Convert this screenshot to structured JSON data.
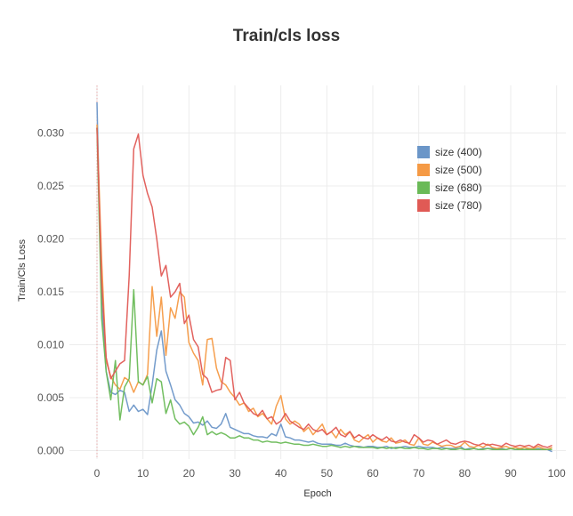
{
  "chart_data": {
    "type": "line",
    "title": "Train/cls loss",
    "xlabel": "Epoch",
    "ylabel": "Train/Cls Loss",
    "xlim": [
      -6,
      102
    ],
    "ylim": [
      -0.0008,
      0.0345
    ],
    "xticks": [
      "0",
      "10",
      "20",
      "30",
      "40",
      "50",
      "60",
      "70",
      "80",
      "90",
      "100"
    ],
    "yticks": [
      "0.000",
      "0.005",
      "0.010",
      "0.015",
      "0.020",
      "0.025",
      "0.030"
    ],
    "grid": true,
    "legend_position": "top-right",
    "x": [
      0,
      1,
      2,
      3,
      4,
      5,
      6,
      7,
      8,
      9,
      10,
      11,
      12,
      13,
      14,
      15,
      16,
      17,
      18,
      19,
      20,
      21,
      22,
      23,
      24,
      25,
      26,
      27,
      28,
      29,
      30,
      31,
      32,
      33,
      34,
      35,
      36,
      37,
      38,
      39,
      40,
      41,
      42,
      43,
      44,
      45,
      46,
      47,
      48,
      49,
      50,
      51,
      52,
      53,
      54,
      55,
      56,
      57,
      58,
      59,
      60,
      61,
      62,
      63,
      64,
      65,
      66,
      67,
      68,
      69,
      70,
      71,
      72,
      73,
      74,
      75,
      76,
      77,
      78,
      79,
      80,
      81,
      82,
      83,
      84,
      85,
      86,
      87,
      88,
      89,
      90,
      91,
      92,
      93,
      94,
      95,
      96,
      97,
      98,
      99
    ],
    "series": [
      {
        "name": "size (400)",
        "color": "#6b96c8",
        "values": [
          0.0329,
          0.014,
          0.0075,
          0.0055,
          0.0053,
          0.0057,
          0.0055,
          0.0037,
          0.0043,
          0.0037,
          0.0039,
          0.0034,
          0.0062,
          0.0095,
          0.0113,
          0.0075,
          0.0062,
          0.0048,
          0.0043,
          0.0035,
          0.0032,
          0.0026,
          0.0027,
          0.0024,
          0.0028,
          0.0022,
          0.0021,
          0.0025,
          0.0035,
          0.0022,
          0.002,
          0.0018,
          0.0016,
          0.0016,
          0.0014,
          0.0013,
          0.0013,
          0.0012,
          0.0016,
          0.0014,
          0.0025,
          0.0013,
          0.0012,
          0.001,
          0.001,
          0.0009,
          0.0008,
          0.0009,
          0.0007,
          0.0006,
          0.0006,
          0.0006,
          0.0005,
          0.0005,
          0.0007,
          0.0005,
          0.0004,
          0.0004,
          0.0003,
          0.0004,
          0.0004,
          0.0003,
          0.0003,
          0.0004,
          0.0002,
          0.0003,
          0.0003,
          0.0004,
          0.0003,
          0.0003,
          0.0004,
          0.0003,
          0.0003,
          0.0003,
          0.0002,
          0.0003,
          0.0002,
          0.0002,
          0.0002,
          0.0004,
          0.0001,
          0.0002,
          0.0002,
          0.0001,
          0.0002,
          0.0002,
          0.0002,
          0.0001,
          0.0002,
          0.0001,
          0.0002,
          0.0001,
          0.0002,
          0.0001,
          0.0002,
          0.0001,
          0.0002,
          0.0001,
          0.0001,
          -0.0001
        ]
      },
      {
        "name": "size (500)",
        "color": "#f59a45",
        "values": [
          0.0308,
          0.018,
          0.0085,
          0.007,
          0.0062,
          0.0058,
          0.0069,
          0.0066,
          0.0055,
          0.0065,
          0.0062,
          0.0072,
          0.0155,
          0.0108,
          0.0145,
          0.009,
          0.0135,
          0.0125,
          0.015,
          0.0145,
          0.0102,
          0.0092,
          0.0085,
          0.0062,
          0.0105,
          0.0106,
          0.0078,
          0.0065,
          0.0062,
          0.0055,
          0.005,
          0.0043,
          0.0045,
          0.0037,
          0.004,
          0.0032,
          0.0035,
          0.003,
          0.0025,
          0.0042,
          0.0052,
          0.003,
          0.0025,
          0.0028,
          0.0025,
          0.0018,
          0.0022,
          0.0015,
          0.002,
          0.0025,
          0.0015,
          0.0018,
          0.0012,
          0.002,
          0.0015,
          0.0018,
          0.001,
          0.0008,
          0.0012,
          0.0015,
          0.0008,
          0.0012,
          0.0009,
          0.0008,
          0.0012,
          0.0007,
          0.0008,
          0.001,
          0.0006,
          0.0005,
          0.0012,
          0.0006,
          0.0005,
          0.0008,
          0.0006,
          0.0004,
          0.0005,
          0.0005,
          0.0003,
          0.0004,
          0.0008,
          0.0004,
          0.0003,
          0.0005,
          0.0003,
          0.0006,
          0.0003,
          0.0002,
          0.0003,
          0.0004,
          0.0002,
          0.0003,
          0.0002,
          0.0003,
          0.0002,
          0.0002,
          0.0004,
          0.0002,
          0.0001,
          0.0003
        ]
      },
      {
        "name": "size (680)",
        "color": "#6aba57",
        "values": [
          0.0305,
          0.0125,
          0.0075,
          0.0048,
          0.0085,
          0.0029,
          0.006,
          0.0068,
          0.0152,
          0.0065,
          0.0062,
          0.007,
          0.0045,
          0.0068,
          0.0065,
          0.0035,
          0.0048,
          0.003,
          0.0025,
          0.0027,
          0.0023,
          0.0015,
          0.0022,
          0.0032,
          0.0015,
          0.0018,
          0.0015,
          0.0017,
          0.0015,
          0.0012,
          0.0012,
          0.0014,
          0.0012,
          0.0012,
          0.001,
          0.001,
          0.0008,
          0.0009,
          0.0008,
          0.0008,
          0.0007,
          0.0008,
          0.0007,
          0.0006,
          0.0006,
          0.0005,
          0.0005,
          0.0006,
          0.0005,
          0.0004,
          0.0004,
          0.0005,
          0.0004,
          0.0003,
          0.0004,
          0.0003,
          0.0004,
          0.0003,
          0.0003,
          0.0003,
          0.0003,
          0.0002,
          0.0003,
          0.0002,
          0.0003,
          0.0002,
          0.0003,
          0.0002,
          0.0002,
          0.0003,
          0.0002,
          0.0002,
          0.0001,
          0.0002,
          0.0002,
          0.0001,
          0.0002,
          0.0001,
          0.0001,
          0.0002,
          0.0001,
          0.0001,
          0.0002,
          0.0001,
          0.0001,
          0.0002,
          0.0001,
          0.0001,
          0.0001,
          0.0001,
          0.0002,
          0.0001,
          0.0001,
          0.0001,
          0.0001,
          0.0001,
          0.0001,
          0.0001,
          0.0001,
          0.0001
        ]
      },
      {
        "name": "size (780)",
        "color": "#e05a55",
        "values": [
          0.0305,
          0.016,
          0.0088,
          0.0068,
          0.0075,
          0.0082,
          0.0085,
          0.0165,
          0.0285,
          0.0299,
          0.026,
          0.0243,
          0.023,
          0.02,
          0.0165,
          0.0175,
          0.0145,
          0.015,
          0.0158,
          0.012,
          0.0128,
          0.0105,
          0.0098,
          0.0072,
          0.0068,
          0.0055,
          0.0057,
          0.0058,
          0.0088,
          0.0085,
          0.0048,
          0.0055,
          0.0045,
          0.004,
          0.0035,
          0.0033,
          0.0038,
          0.003,
          0.0032,
          0.0025,
          0.0028,
          0.0035,
          0.0028,
          0.0025,
          0.0022,
          0.002,
          0.0025,
          0.002,
          0.0018,
          0.002,
          0.0015,
          0.0018,
          0.0022,
          0.0015,
          0.0013,
          0.0018,
          0.0012,
          0.0015,
          0.0012,
          0.0011,
          0.0015,
          0.0012,
          0.001,
          0.0013,
          0.0009,
          0.0008,
          0.001,
          0.0008,
          0.0007,
          0.0015,
          0.0012,
          0.0008,
          0.001,
          0.0009,
          0.0006,
          0.0008,
          0.001,
          0.0007,
          0.0006,
          0.0008,
          0.0009,
          0.0008,
          0.0006,
          0.0005,
          0.0007,
          0.0005,
          0.0006,
          0.0005,
          0.0004,
          0.0007,
          0.0005,
          0.0004,
          0.0005,
          0.0004,
          0.0005,
          0.0003,
          0.0006,
          0.0004,
          0.0003,
          0.0005
        ]
      }
    ]
  }
}
